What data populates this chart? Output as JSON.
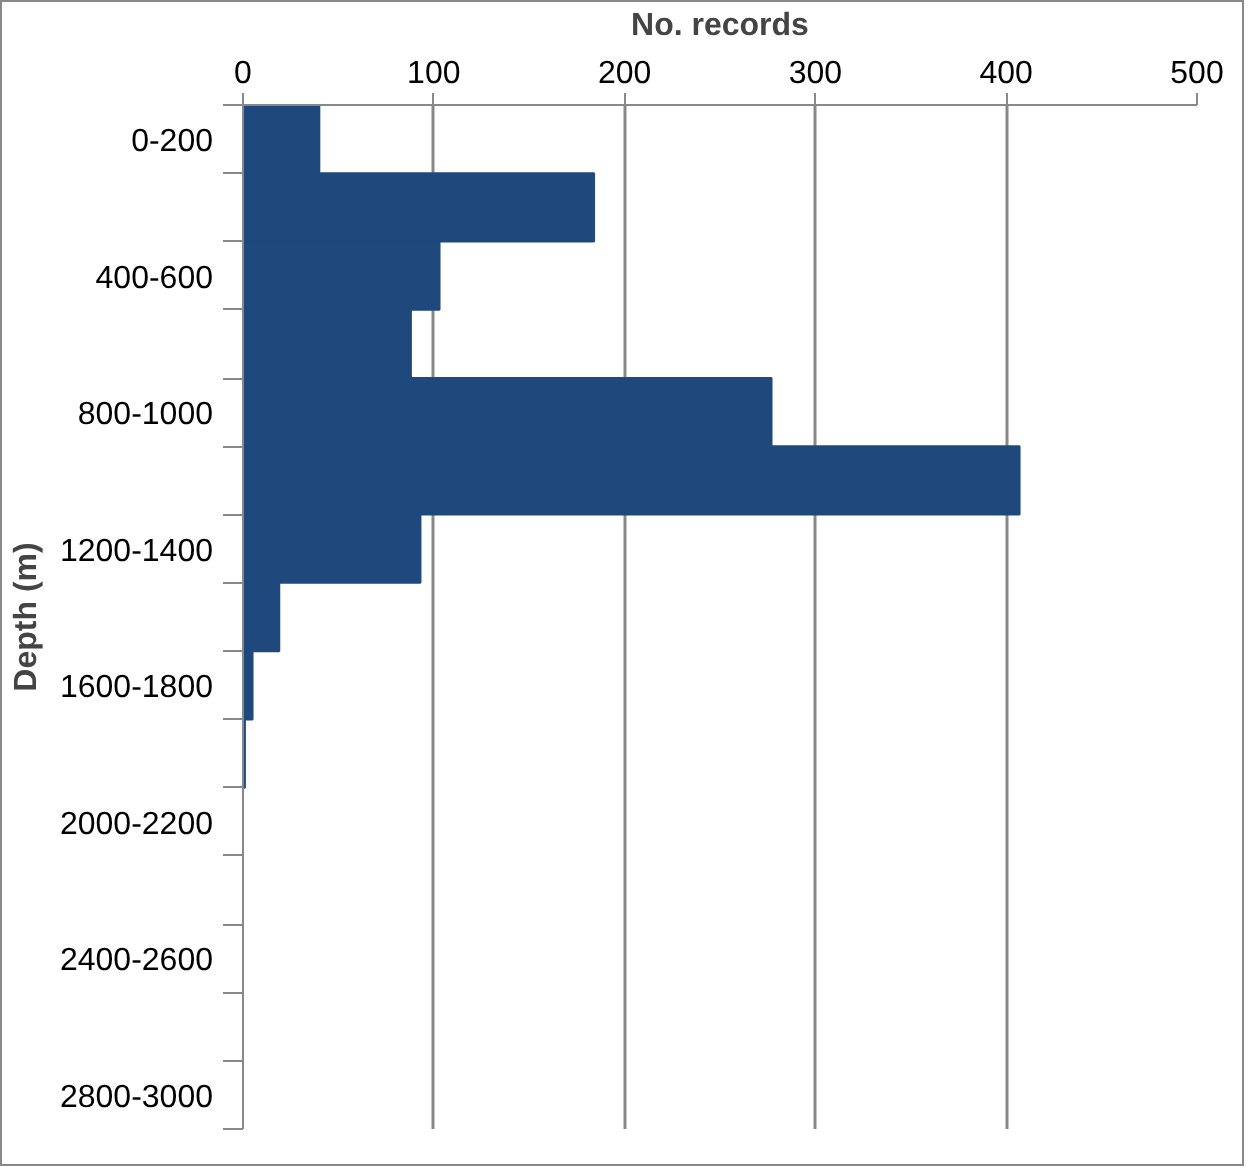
{
  "chart_data": {
    "type": "bar",
    "orientation": "horizontal",
    "xlabel": "No. records",
    "ylabel": "Depth (m)",
    "categories": [
      "0-200",
      null,
      "400-600",
      null,
      "800-1000",
      null,
      "1200-1400",
      null,
      "1600-1800",
      null,
      "2000-2200",
      null,
      "2400-2600",
      null,
      "2800-3000"
    ],
    "values": [
      40,
      184,
      103,
      88,
      277,
      407,
      93,
      19,
      5,
      1,
      0,
      0,
      0,
      0,
      0
    ],
    "color": "#1f497d",
    "xlim": [
      0,
      500
    ],
    "xticks": [
      0,
      100,
      200,
      300,
      400,
      500
    ],
    "grid": "x"
  }
}
